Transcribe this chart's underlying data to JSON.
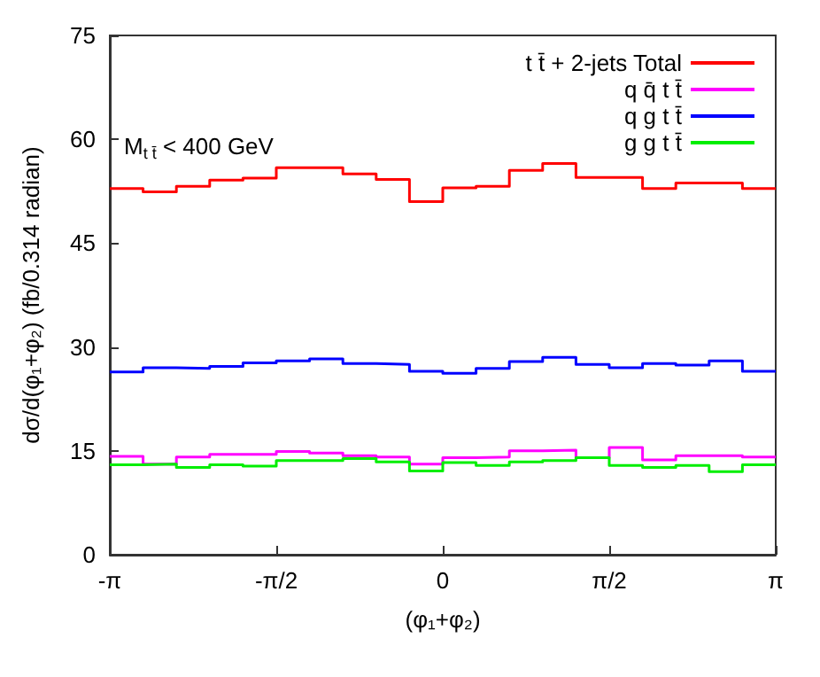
{
  "chart_data": {
    "type": "histogram",
    "xlabel": "(φ₁+φ₂)",
    "ylabel": "dσ/d(φ₁+φ₂) (fb/0.314 radian)",
    "annotations": [
      "M$_{t t̄}$ < 400 GeV"
    ],
    "bins": [
      -3.1416,
      -2.8274,
      -2.5133,
      -2.1991,
      -1.885,
      -1.5708,
      -1.2566,
      -0.9425,
      -0.6283,
      -0.3142,
      0,
      0.3142,
      0.6283,
      0.9425,
      1.2566,
      1.5708,
      1.885,
      2.1991,
      2.5133,
      2.8274,
      3.1416
    ],
    "series": [
      {
        "name": "t t̄ + 2-jets Total",
        "color": "#ff0000",
        "values": [
          52.9,
          52.4,
          53.2,
          54.1,
          54.4,
          55.9,
          55.9,
          55.0,
          54.2,
          51.0,
          53.0,
          53.2,
          55.5,
          56.5,
          54.5,
          54.5,
          52.9,
          53.7,
          53.7,
          52.9
        ]
      },
      {
        "name": "q q̄ t t̄",
        "color": "#ff00ff",
        "values": [
          14.2,
          13.1,
          14.1,
          14.5,
          14.5,
          14.9,
          14.7,
          14.3,
          14.1,
          13.1,
          14.0,
          14.1,
          15.0,
          15.1,
          14.0,
          15.5,
          13.7,
          14.3,
          14.3,
          14.1
        ]
      },
      {
        "name": "q g t t̄",
        "color": "#0000ff",
        "values": [
          26.4,
          27.0,
          26.9,
          27.2,
          27.7,
          28.0,
          28.3,
          27.6,
          27.5,
          26.5,
          26.2,
          26.9,
          27.9,
          28.5,
          27.5,
          27.0,
          27.6,
          27.4,
          28.0,
          26.5
        ]
      },
      {
        "name": "g g t t̄",
        "color": "#00ee00",
        "values": [
          13.0,
          13.1,
          12.6,
          13.0,
          12.8,
          13.6,
          13.6,
          13.9,
          13.4,
          12.1,
          13.3,
          12.9,
          13.4,
          13.6,
          14.0,
          12.9,
          12.6,
          12.9,
          12.0,
          13.0
        ]
      }
    ],
    "xlim": [
      -3.1416,
      3.1416
    ],
    "xticks": [
      {
        "value": -3.1416,
        "label": "-π"
      },
      {
        "value": -1.5708,
        "label": "-π/2"
      },
      0,
      {
        "value": 1.5708,
        "label": "π/2"
      },
      {
        "value": 3.1416,
        "label": "π"
      }
    ],
    "ylim": [
      0,
      75
    ],
    "yticks": [
      0,
      15,
      30,
      45,
      60,
      75
    ],
    "grid": false,
    "legend": "top right"
  }
}
